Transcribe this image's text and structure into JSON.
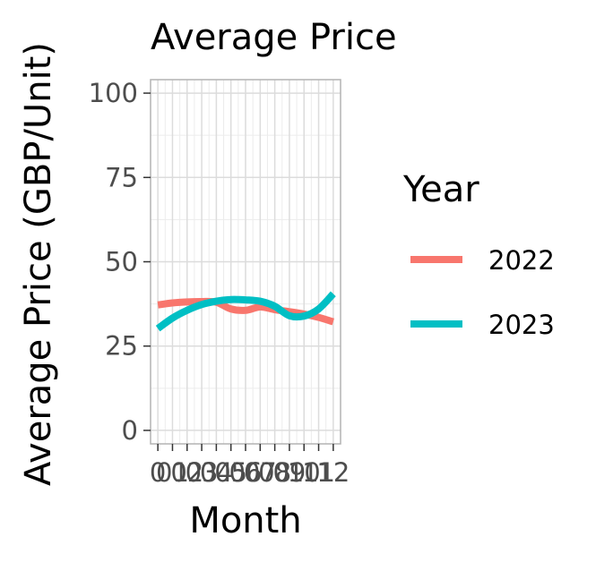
{
  "chart_data": {
    "type": "line",
    "title": "Average Price",
    "xlabel": "Month",
    "ylabel": "Average Price (GBP/Unit)",
    "xlim": [
      -0.5,
      12.5
    ],
    "ylim": [
      -4,
      104
    ],
    "x_ticks": [
      0,
      1,
      2,
      3,
      4,
      5,
      6,
      7,
      8,
      9,
      10,
      11,
      12
    ],
    "x_tick_labels": [
      "0",
      "01",
      "02",
      "03",
      "04",
      "05",
      "06",
      "07",
      "08",
      "09",
      "10",
      "11",
      "12"
    ],
    "y_ticks": [
      0,
      25,
      50,
      75,
      100
    ],
    "y_tick_labels": [
      "0",
      "25",
      "50",
      "75",
      "100"
    ],
    "grid": true,
    "legend": {
      "title": "Year",
      "position": "right"
    },
    "series": [
      {
        "name": "2022",
        "color": "#F8766D",
        "x": [
          0,
          1,
          2,
          3,
          4,
          5,
          6,
          7,
          8,
          9,
          10,
          11,
          12
        ],
        "values": [
          37.2,
          37.8,
          38.1,
          38.2,
          38.0,
          36.0,
          35.6,
          36.6,
          35.8,
          35.2,
          34.5,
          33.5,
          32.2
        ]
      },
      {
        "name": "2023",
        "color": "#00BFC4",
        "x": [
          0,
          1,
          2,
          3,
          4,
          5,
          6,
          7,
          8,
          9,
          10,
          11,
          12
        ],
        "values": [
          30.2,
          33.3,
          35.6,
          37.3,
          38.3,
          38.8,
          38.7,
          38.3,
          36.8,
          34.0,
          33.9,
          36.0,
          40.5
        ]
      }
    ]
  }
}
